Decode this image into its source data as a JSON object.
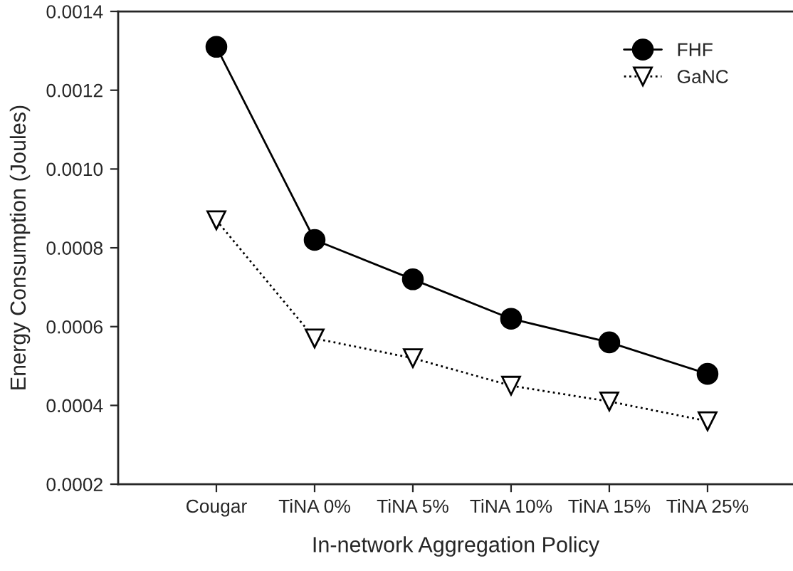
{
  "chart_data": {
    "type": "line",
    "xlabel": "In-network Aggregation Policy",
    "ylabel": "Energy Consumption (Joules)",
    "categories": [
      "Cougar",
      "TiNA 0%",
      "TiNA 5%",
      "TiNA 10%",
      "TiNA 15%",
      "TiNA 25%"
    ],
    "series": [
      {
        "name": "FHF",
        "color": "#000000",
        "marker": "circle",
        "line_style": "solid",
        "values": [
          0.00131,
          0.00082,
          0.00072,
          0.00062,
          0.00056,
          0.00048
        ]
      },
      {
        "name": "GaNC",
        "color": "#000000",
        "marker": "triangle",
        "line_style": "dotted",
        "values": [
          0.00087,
          0.00057,
          0.00052,
          0.00045,
          0.00041,
          0.00036
        ]
      }
    ],
    "ylim": [
      0.0002,
      0.0014
    ],
    "yticks": [
      0.0002,
      0.0004,
      0.0006,
      0.0008,
      {
        "value": 0.001,
        "label": "0.0010"
      },
      0.0012,
      0.0014
    ],
    "grid": false,
    "legend": "top right"
  }
}
